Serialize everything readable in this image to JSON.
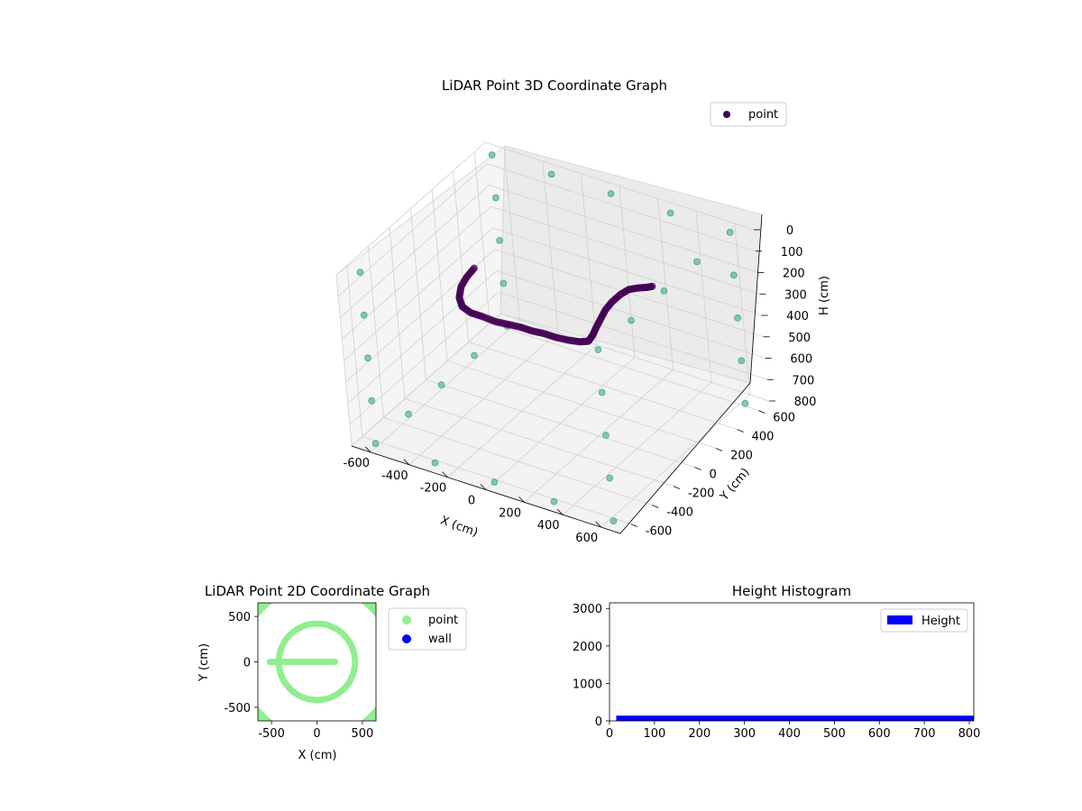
{
  "chart_data": [
    {
      "type": "scatter3d",
      "title": "LiDAR Point 3D Coordinate Graph",
      "xlabel": "X (cm)",
      "ylabel": "Y (cm)",
      "zlabel": "H (cm)",
      "xlim": [
        -700,
        700
      ],
      "ylim": [
        -700,
        700
      ],
      "zlim": [
        800,
        0
      ],
      "xticks": [
        "-600",
        "-400",
        "-200",
        "0",
        "200",
        "400",
        "600"
      ],
      "yticks": [
        "-600",
        "-400",
        "-200",
        "0",
        "200",
        "400",
        "600"
      ],
      "zticks": [
        "0",
        "100",
        "200",
        "300",
        "400",
        "500",
        "600",
        "700",
        "800"
      ],
      "grid": true,
      "legend": {
        "position": "top-right",
        "entries": [
          "point"
        ]
      },
      "series": [
        {
          "name": "point",
          "color": "#440154",
          "points": [
            [
              -450,
              100,
              250
            ],
            [
              -470,
              60,
              280
            ],
            [
              -480,
              20,
              310
            ],
            [
              -470,
              -20,
              340
            ],
            [
              -440,
              -50,
              360
            ],
            [
              -390,
              -60,
              370
            ],
            [
              -330,
              -60,
              370
            ],
            [
              -270,
              -50,
              380
            ],
            [
              -210,
              -40,
              380
            ],
            [
              -150,
              -30,
              380
            ],
            [
              -90,
              -30,
              380
            ],
            [
              -30,
              -20,
              380
            ],
            [
              30,
              -20,
              380
            ],
            [
              90,
              -10,
              380
            ],
            [
              150,
              -10,
              370
            ],
            [
              190,
              0,
              360
            ],
            [
              210,
              10,
              330
            ],
            [
              220,
              30,
              300
            ],
            [
              230,
              60,
              270
            ],
            [
              240,
              90,
              240
            ],
            [
              260,
              120,
              210
            ],
            [
              290,
              150,
              180
            ],
            [
              320,
              180,
              160
            ],
            [
              360,
              200,
              150
            ],
            [
              400,
              210,
              140
            ],
            [
              430,
              220,
              130
            ]
          ]
        },
        {
          "name": "wall",
          "color": "#5fbf9c",
          "points": [
            [
              -620,
              -620,
              800
            ],
            [
              -620,
              -620,
              600
            ],
            [
              -620,
              -620,
              400
            ],
            [
              -620,
              -620,
              200
            ],
            [
              -620,
              -620,
              0
            ],
            [
              -620,
              620,
              800
            ],
            [
              -620,
              620,
              600
            ],
            [
              -620,
              620,
              400
            ],
            [
              -620,
              620,
              200
            ],
            [
              -620,
              620,
              0
            ],
            [
              620,
              -620,
              800
            ],
            [
              620,
              -620,
              600
            ],
            [
              620,
              -620,
              400
            ],
            [
              620,
              -620,
              200
            ],
            [
              620,
              -620,
              0
            ],
            [
              620,
              620,
              800
            ],
            [
              620,
              620,
              600
            ],
            [
              620,
              620,
              400
            ],
            [
              620,
              620,
              200
            ],
            [
              620,
              620,
              0
            ],
            [
              -310,
              -620,
              800
            ],
            [
              0,
              -620,
              800
            ],
            [
              310,
              -620,
              800
            ],
            [
              -310,
              620,
              0
            ],
            [
              0,
              620,
              0
            ],
            [
              310,
              620,
              0
            ],
            [
              -620,
              -310,
              800
            ],
            [
              -620,
              0,
              800
            ],
            [
              -620,
              310,
              800
            ],
            [
              620,
              -310,
              0
            ],
            [
              620,
              0,
              0
            ],
            [
              620,
              310,
              0
            ]
          ]
        }
      ]
    },
    {
      "type": "scatter",
      "title": "LiDAR Point 2D Coordinate Graph",
      "xlabel": "X (cm)",
      "ylabel": "Y (cm)",
      "xlim": [
        -650,
        650
      ],
      "ylim": [
        -650,
        650
      ],
      "xticks": [
        -500,
        0,
        500
      ],
      "yticks": [
        -500,
        0,
        500
      ],
      "legend": {
        "position": "outside-right",
        "entries": [
          "point",
          "wall"
        ]
      },
      "series": [
        {
          "name": "point",
          "color": "#90ee90",
          "circle_radius": 420,
          "line_from": -520,
          "line_to": 200
        },
        {
          "name": "wall",
          "color": "#0000ff",
          "outer_circle_radius": 880
        }
      ]
    },
    {
      "type": "histogram",
      "title": "Height Histogram",
      "xlim": [
        0,
        810
      ],
      "ylim": [
        0,
        3150
      ],
      "xticks": [
        0,
        100,
        200,
        300,
        400,
        500,
        600,
        700,
        800
      ],
      "yticks": [
        0,
        1000,
        2000,
        3000
      ],
      "color": "#0000ff",
      "legend": {
        "position": "top-right",
        "entries": [
          "Height"
        ]
      },
      "bins": {
        "start": 15,
        "end": 810,
        "value": 140
      }
    }
  ]
}
